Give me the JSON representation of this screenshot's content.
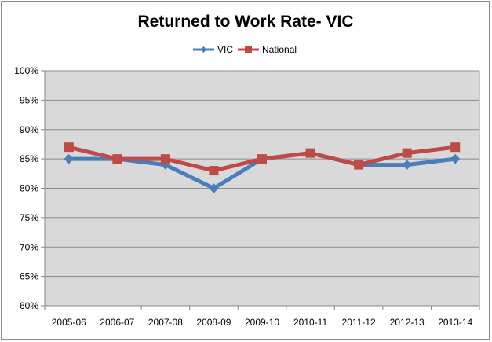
{
  "chart_data": {
    "type": "line",
    "title": "Returned to Work Rate- VIC",
    "xlabel": "",
    "ylabel": "",
    "categories": [
      "2005-06",
      "2006-07",
      "2007-08",
      "2008-09",
      "2009-10",
      "2010-11",
      "2011-12",
      "2012-13",
      "2013-14"
    ],
    "y_ticks": [
      "60%",
      "65%",
      "70%",
      "75%",
      "80%",
      "85%",
      "90%",
      "95%",
      "100%"
    ],
    "ylim": [
      60,
      100
    ],
    "y_unit": "%",
    "grid": true,
    "legend_position": "top",
    "series": [
      {
        "name": "VIC",
        "values": [
          85,
          85,
          84,
          80,
          85,
          86,
          84,
          84,
          85
        ],
        "color": "#4a7ebb",
        "marker": "diamond"
      },
      {
        "name": "National",
        "values": [
          87,
          85,
          85,
          83,
          85,
          86,
          84,
          86,
          87
        ],
        "color": "#be4b48",
        "marker": "square"
      }
    ],
    "plot_background": "#d9d9d9",
    "gridline_color": "#8c8c8c"
  }
}
